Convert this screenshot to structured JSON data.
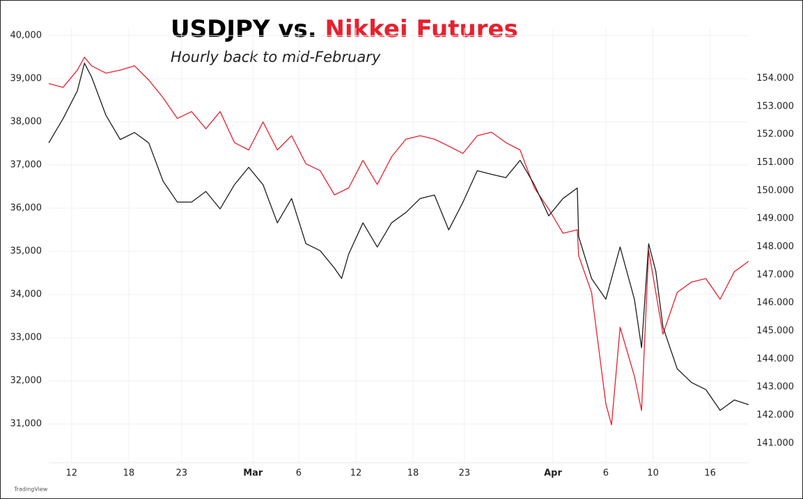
{
  "chart_data": {
    "type": "line",
    "title_parts": [
      {
        "text": "USDJPY vs.",
        "color": "#000000"
      },
      {
        "text": "Nikkei Futures",
        "color": "#e8202e"
      }
    ],
    "subtitle": "Hourly back to mid-February",
    "watermark": "TradingView",
    "xlim": [
      0,
      49
    ],
    "xticks": [
      {
        "value": 1.6,
        "label": "12"
      },
      {
        "value": 5.6,
        "label": "18"
      },
      {
        "value": 9.3,
        "label": "23"
      },
      {
        "value": 14.3,
        "label": "Mar"
      },
      {
        "value": 17.5,
        "label": "6"
      },
      {
        "value": 21.5,
        "label": "12"
      },
      {
        "value": 25.5,
        "label": "18"
      },
      {
        "value": 29.1,
        "label": "23"
      },
      {
        "value": 35.3,
        "label": "Apr"
      },
      {
        "value": 39,
        "label": "6"
      },
      {
        "value": 42.3,
        "label": "10"
      },
      {
        "value": 46.3,
        "label": "16"
      }
    ],
    "ylim": [
      30100,
      40180
    ],
    "yticks": [
      {
        "value": 31000,
        "label": "31,000"
      },
      {
        "value": 32000,
        "label": "32,000"
      },
      {
        "value": 33000,
        "label": "33,000"
      },
      {
        "value": 34000,
        "label": "34,000"
      },
      {
        "value": 35000,
        "label": "35,000"
      },
      {
        "value": 36000,
        "label": "36,000"
      },
      {
        "value": 37000,
        "label": "37,000"
      },
      {
        "value": 38000,
        "label": "38,000"
      },
      {
        "value": 39000,
        "label": "39,000"
      },
      {
        "value": 40000,
        "label": "40,000"
      }
    ],
    "y2lim": [
      140.3,
      155.8
    ],
    "y2ticks": [
      {
        "value": 141,
        "label": "141.000"
      },
      {
        "value": 142,
        "label": "142.000"
      },
      {
        "value": 143,
        "label": "143.000"
      },
      {
        "value": 144,
        "label": "144.000"
      },
      {
        "value": 145,
        "label": "145.000"
      },
      {
        "value": 146,
        "label": "146.000"
      },
      {
        "value": 147,
        "label": "147.000"
      },
      {
        "value": 148,
        "label": "148.000"
      },
      {
        "value": 149,
        "label": "149.000"
      },
      {
        "value": 150,
        "label": "150.000"
      },
      {
        "value": 151,
        "label": "151.000"
      },
      {
        "value": 152,
        "label": "152.000"
      },
      {
        "value": 153,
        "label": "153.000"
      },
      {
        "value": 154,
        "label": "154.000"
      }
    ],
    "grid": true,
    "series": [
      {
        "color": "#e8202e",
        "axis": "y",
        "x": [
          0,
          1,
          2,
          2.5,
          3,
          4,
          5,
          6,
          7,
          8,
          9,
          10,
          11,
          12,
          13,
          14,
          15,
          16,
          17,
          18,
          19,
          20,
          21,
          22,
          23,
          24,
          25,
          26,
          27,
          28,
          29,
          30,
          31,
          32,
          33,
          34,
          35,
          36,
          37,
          37.1,
          38,
          39,
          39.4,
          40,
          41,
          41.5,
          42,
          43,
          44,
          45,
          46,
          47,
          48,
          49
        ],
        "values": [
          38890,
          38800,
          39200,
          39500,
          39300,
          39130,
          39200,
          39300,
          38970,
          38560,
          38080,
          38240,
          37840,
          38240,
          37520,
          37350,
          38000,
          37350,
          37680,
          37030,
          36870,
          36310,
          36470,
          37110,
          36550,
          37190,
          37600,
          37680,
          37600,
          37440,
          37270,
          37680,
          37760,
          37520,
          37350,
          36470,
          35980,
          35420,
          35500,
          34900,
          34050,
          31470,
          30980,
          33240,
          32110,
          31310,
          35020,
          33080,
          34050,
          34290,
          34370,
          33890,
          34530,
          34770
        ]
      },
      {
        "color": "#1c1c1c",
        "axis": "y2",
        "x": [
          0,
          1,
          2,
          2.5,
          3,
          4,
          5,
          6,
          7,
          8,
          9,
          10,
          11,
          12,
          13,
          14,
          15,
          16,
          17,
          18,
          19,
          20,
          20.5,
          21,
          22,
          23,
          24,
          25,
          26,
          27,
          28,
          29,
          30,
          31,
          32,
          33,
          34,
          35,
          36,
          37,
          37.1,
          38,
          39,
          40,
          41,
          41.5,
          42,
          42.5,
          43,
          44,
          45,
          46,
          47,
          48,
          49
        ],
        "values": [
          151.7,
          152.56,
          153.55,
          154.54,
          154.05,
          152.69,
          151.82,
          152.07,
          151.7,
          150.34,
          149.59,
          149.59,
          149.97,
          149.35,
          150.21,
          150.83,
          150.21,
          148.85,
          149.72,
          148.11,
          147.86,
          147.24,
          146.87,
          147.74,
          148.85,
          147.99,
          148.85,
          149.22,
          149.72,
          149.84,
          148.6,
          149.59,
          150.71,
          150.58,
          150.46,
          151.08,
          150.21,
          149.1,
          149.72,
          150.09,
          148.36,
          146.87,
          146.13,
          147.99,
          146.13,
          144.4,
          148.11,
          147.12,
          145.14,
          143.65,
          143.16,
          142.91,
          142.17,
          142.54,
          142.37
        ]
      }
    ]
  }
}
